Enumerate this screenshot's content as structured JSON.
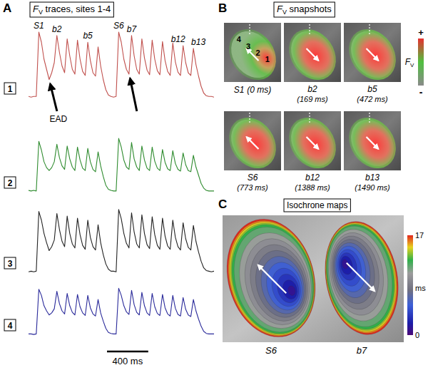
{
  "chart_data": {
    "type": "line",
    "panel": "A",
    "title": {
      "symbol": "F",
      "subscript": "V",
      "rest": " traces, sites 1-4"
    },
    "x": [
      -100,
      -75,
      -50,
      -25,
      0,
      25,
      50,
      75,
      100,
      125,
      150,
      175,
      200,
      225,
      250,
      275,
      300,
      325,
      350,
      375,
      400,
      425,
      450,
      475,
      500,
      525,
      550,
      575,
      600,
      625,
      650,
      675,
      700,
      725,
      750,
      775,
      800,
      825,
      850,
      875,
      900,
      925,
      950,
      975,
      1000,
      1025,
      1050,
      1075,
      1100,
      1125,
      1150,
      1175,
      1200,
      1225,
      1250,
      1275,
      1300,
      1325,
      1350,
      1375,
      1400,
      1425,
      1450,
      1475,
      1500,
      1525,
      1550,
      1575,
      1600,
      1625,
      1650,
      1675,
      1700
    ],
    "xlim": [
      -100,
      1700
    ],
    "ylim": [
      0,
      1
    ],
    "tick_labels": false,
    "series": [
      {
        "name": "1",
        "color": "#c0504d",
        "values": [
          0.05,
          0.04,
          0.05,
          0.05,
          1.0,
          0.85,
          0.6,
          0.45,
          0.3,
          0.4,
          0.55,
          0.95,
          0.7,
          0.5,
          0.4,
          0.9,
          0.65,
          0.45,
          0.38,
          0.88,
          0.6,
          0.42,
          0.36,
          0.85,
          0.58,
          0.4,
          0.35,
          0.78,
          0.5,
          0.3,
          0.15,
          0.07,
          0.05,
          0.04,
          0.05,
          1.0,
          0.85,
          0.6,
          0.45,
          0.38,
          0.95,
          0.65,
          0.45,
          0.38,
          0.9,
          0.62,
          0.44,
          0.37,
          0.88,
          0.6,
          0.43,
          0.37,
          0.86,
          0.58,
          0.42,
          0.36,
          0.84,
          0.56,
          0.41,
          0.36,
          0.8,
          0.55,
          0.4,
          0.36,
          0.76,
          0.52,
          0.35,
          0.2,
          0.1,
          0.06,
          0.05,
          0.05,
          0.04
        ]
      },
      {
        "name": "2",
        "color": "#2e8b2e",
        "values": [
          0.06,
          0.05,
          0.06,
          0.05,
          0.9,
          0.75,
          0.55,
          0.45,
          0.4,
          0.45,
          0.55,
          0.85,
          0.62,
          0.48,
          0.42,
          0.82,
          0.6,
          0.46,
          0.4,
          0.8,
          0.58,
          0.44,
          0.4,
          0.78,
          0.55,
          0.42,
          0.38,
          0.72,
          0.48,
          0.3,
          0.15,
          0.08,
          0.06,
          0.05,
          0.05,
          0.95,
          0.8,
          0.58,
          0.46,
          0.42,
          0.88,
          0.6,
          0.46,
          0.4,
          0.82,
          0.58,
          0.44,
          0.4,
          0.8,
          0.56,
          0.44,
          0.4,
          0.76,
          0.54,
          0.43,
          0.4,
          0.74,
          0.52,
          0.42,
          0.39,
          0.7,
          0.5,
          0.4,
          0.38,
          0.66,
          0.46,
          0.32,
          0.18,
          0.1,
          0.06,
          0.05,
          0.05,
          0.05
        ]
      },
      {
        "name": "3",
        "color": "#222222",
        "values": [
          0.04,
          0.05,
          0.04,
          0.05,
          0.95,
          0.82,
          0.62,
          0.48,
          0.36,
          0.42,
          0.52,
          0.92,
          0.68,
          0.5,
          0.42,
          0.88,
          0.62,
          0.46,
          0.4,
          0.85,
          0.6,
          0.44,
          0.38,
          0.82,
          0.56,
          0.42,
          0.37,
          0.75,
          0.48,
          0.3,
          0.16,
          0.08,
          0.05,
          0.05,
          0.04,
          0.98,
          0.84,
          0.62,
          0.47,
          0.4,
          0.93,
          0.64,
          0.46,
          0.4,
          0.9,
          0.62,
          0.45,
          0.39,
          0.87,
          0.6,
          0.44,
          0.38,
          0.85,
          0.58,
          0.43,
          0.38,
          0.82,
          0.56,
          0.42,
          0.37,
          0.78,
          0.54,
          0.41,
          0.37,
          0.74,
          0.5,
          0.34,
          0.2,
          0.1,
          0.06,
          0.05,
          0.04,
          0.05
        ]
      },
      {
        "name": "4",
        "color": "#2a2a9a",
        "values": [
          0.05,
          0.05,
          0.04,
          0.05,
          0.92,
          0.8,
          0.6,
          0.5,
          0.42,
          0.46,
          0.54,
          0.88,
          0.64,
          0.5,
          0.44,
          0.84,
          0.6,
          0.47,
          0.42,
          0.82,
          0.58,
          0.46,
          0.41,
          0.8,
          0.56,
          0.44,
          0.4,
          0.72,
          0.46,
          0.3,
          0.16,
          0.08,
          0.06,
          0.05,
          0.05,
          0.94,
          0.8,
          0.6,
          0.48,
          0.43,
          0.9,
          0.62,
          0.47,
          0.42,
          0.86,
          0.6,
          0.46,
          0.41,
          0.84,
          0.58,
          0.45,
          0.41,
          0.82,
          0.56,
          0.44,
          0.4,
          0.8,
          0.55,
          0.43,
          0.4,
          0.76,
          0.53,
          0.42,
          0.39,
          0.72,
          0.5,
          0.34,
          0.2,
          0.1,
          0.06,
          0.05,
          0.05,
          0.05
        ]
      }
    ],
    "annotations": [
      {
        "text": "S1",
        "x": 0
      },
      {
        "text": "b2",
        "x": 175
      },
      {
        "text": "b5",
        "x": 475
      },
      {
        "text": "S6",
        "x": 775
      },
      {
        "text": "b7",
        "x": 900
      },
      {
        "text": "b12",
        "x": 1400
      },
      {
        "text": "b13",
        "x": 1500
      }
    ],
    "ead": {
      "text": "EAD",
      "x": [
        100,
        875
      ]
    },
    "scale_bar": {
      "value": 400,
      "label": "400 ms"
    }
  },
  "snapshots": {
    "panel": "B",
    "title": {
      "symbol": "F",
      "subscript": "V",
      "rest": " snapshots"
    },
    "frames": [
      {
        "beat": "S1",
        "time_label": "(0 ms)",
        "arrow": "up-left",
        "sites": [
          "4",
          "3",
          "2",
          "1"
        ]
      },
      {
        "beat": "b2",
        "time_label": "(169 ms)",
        "arrow": "down-right"
      },
      {
        "beat": "b5",
        "time_label": "(472 ms)",
        "arrow": "down-right"
      },
      {
        "beat": "S6",
        "time_label": "(773 ms)",
        "arrow": "up-left"
      },
      {
        "beat": "b12",
        "time_label": "(1388 ms)",
        "arrow": "down-right"
      },
      {
        "beat": "b13",
        "time_label": "(1490 ms)",
        "arrow": "down-right"
      }
    ],
    "colorbar": {
      "top": "+",
      "label": {
        "symbol": "F",
        "subscript": "V"
      },
      "bottom": "-"
    }
  },
  "isochrones": {
    "panel": "C",
    "title": "Isochrone maps",
    "maps": [
      {
        "label": "S6",
        "arrow": "up-left"
      },
      {
        "label": "b7",
        "arrow": "down-right"
      }
    ],
    "colorbar": {
      "range": [
        0,
        17
      ],
      "ticks": [
        0,
        17
      ],
      "label": "ms"
    }
  }
}
